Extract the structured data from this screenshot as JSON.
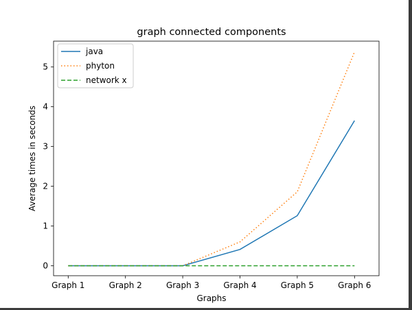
{
  "chart_data": {
    "type": "line",
    "title": "graph connected components",
    "xlabel": "Graphs",
    "ylabel": "Average times in seconds",
    "categories": [
      "Graph 1",
      "Graph 2",
      "Graph 3",
      "Graph 4",
      "Graph 5",
      "Graph 6"
    ],
    "ylim": [
      -0.25,
      5.65
    ],
    "yticks": [
      0,
      1,
      2,
      3,
      4,
      5
    ],
    "grid": false,
    "legend_position": "top-left",
    "series": [
      {
        "name": "java",
        "values": [
          0.0,
          0.0,
          0.0,
          0.41,
          1.26,
          3.65
        ],
        "color": "#1f77b4",
        "style": "solid"
      },
      {
        "name": "phyton",
        "values": [
          0.0,
          0.0,
          0.0,
          0.6,
          1.86,
          5.38
        ],
        "color": "#ff7f0e",
        "style": "dotted"
      },
      {
        "name": "network x",
        "values": [
          0.0,
          0.0,
          0.0,
          0.0,
          0.0,
          0.0
        ],
        "color": "#2ca02c",
        "style": "dashed"
      }
    ]
  }
}
